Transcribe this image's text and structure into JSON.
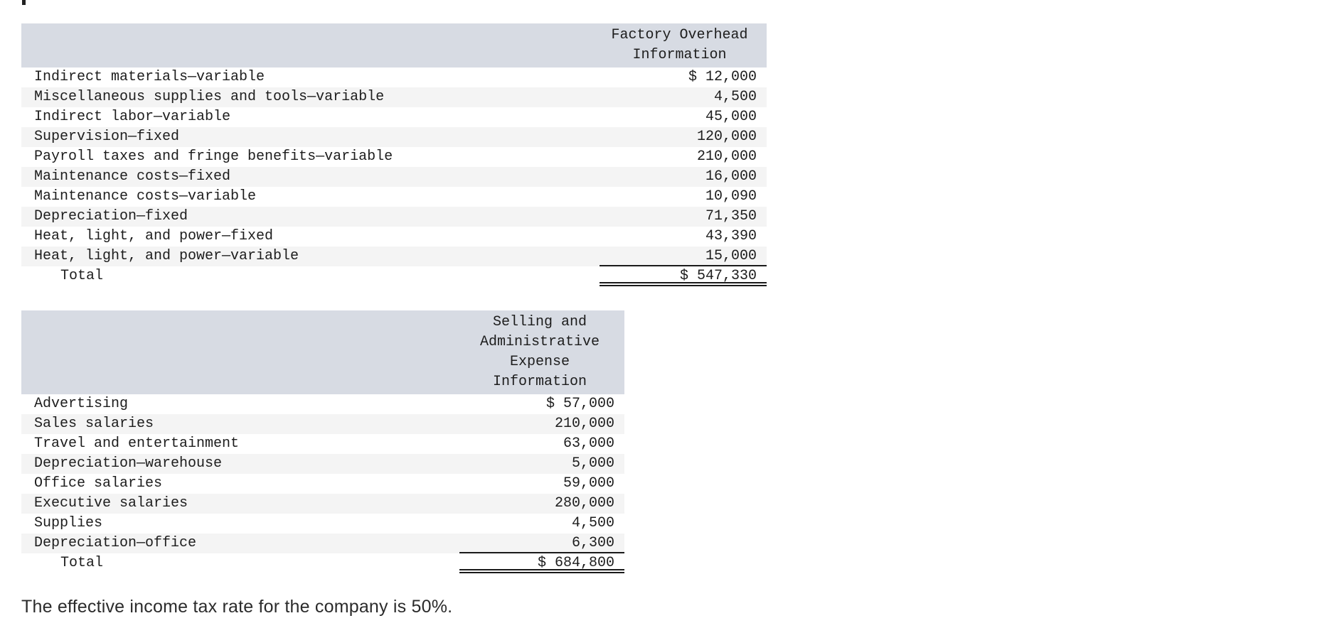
{
  "colors": {
    "header_bg": "#d7dbe3",
    "stripe_bg": "#f4f4f4",
    "text": "#1d1d1d"
  },
  "footer_note": "The effective income tax rate for the company is 50%.",
  "tables": [
    {
      "name": "factory-overhead-table",
      "header_lines": [
        "Factory Overhead",
        "Information"
      ],
      "rows": [
        {
          "label": "Indirect materials—variable",
          "amount": "$ 12,000"
        },
        {
          "label": "Miscellaneous supplies and tools—variable",
          "amount": "4,500"
        },
        {
          "label": "Indirect labor—variable",
          "amount": "45,000"
        },
        {
          "label": "Supervision—fixed",
          "amount": "120,000"
        },
        {
          "label": "Payroll taxes and fringe benefits—variable",
          "amount": "210,000"
        },
        {
          "label": "Maintenance costs—fixed",
          "amount": "16,000"
        },
        {
          "label": "Maintenance costs—variable",
          "amount": "10,090"
        },
        {
          "label": "Depreciation—fixed",
          "amount": "71,350"
        },
        {
          "label": "Heat, light, and power—fixed",
          "amount": "43,390"
        },
        {
          "label": "Heat, light, and power—variable",
          "amount": "15,000"
        }
      ],
      "total": {
        "label": "Total",
        "amount": "$ 547,330"
      }
    },
    {
      "name": "selling-admin-expense-table",
      "header_lines": [
        "Selling and",
        "Administrative",
        "Expense",
        "Information"
      ],
      "rows": [
        {
          "label": "Advertising",
          "amount": "$ 57,000"
        },
        {
          "label": "Sales salaries",
          "amount": "210,000"
        },
        {
          "label": "Travel and entertainment",
          "amount": "63,000"
        },
        {
          "label": "Depreciation—warehouse",
          "amount": "5,000"
        },
        {
          "label": "Office salaries",
          "amount": "59,000"
        },
        {
          "label": "Executive salaries",
          "amount": "280,000"
        },
        {
          "label": "Supplies",
          "amount": "4,500"
        },
        {
          "label": "Depreciation—office",
          "amount": "6,300"
        }
      ],
      "total": {
        "label": "Total",
        "amount": "$ 684,800"
      }
    }
  ]
}
